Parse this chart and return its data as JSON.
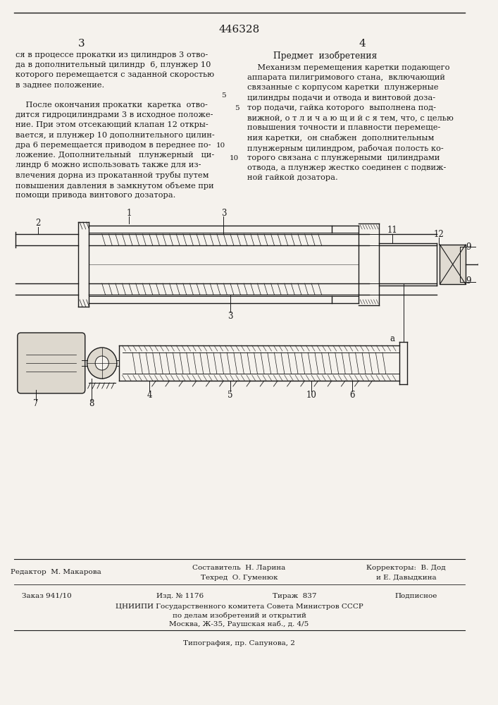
{
  "patent_number": "446328",
  "page_left": "3",
  "page_right": "4",
  "background_color": "#f5f2ed",
  "text_color": "#1a1a1a",
  "left_column_text": [
    "ся в процессе прокатки из цилиндров 3 отво-",
    "да в дополнительный цилиндр  6, плунжер 10",
    "которого перемещается с заданной скоростью",
    "в заднее положение.",
    "",
    "    После окончания прокатки  каретка  отво-",
    "дится гидроцилиндрами 3 в исходное положе-",
    "ние. При этом отсекающий клапан 12 откры-",
    "вается, и плунжер 10 дополнительного цилин-",
    "дра 6 перемещается приводом в переднее по-",
    "ложение. Дополнительный   плунжерный   ци-",
    "линдр 6 можно использовать также для из-",
    "влечения дорна из прокатанной трубы путем",
    "повышения давления в замкнутом объеме при",
    "помощи привода винтового дозатора."
  ],
  "right_title": "Предмет  изобретения",
  "right_column_text": [
    "    Механизм перемещения каретки подающего",
    "аппарата пилигримового стана,  включающий",
    "связанные с корпусом каретки  плунжерные",
    "цилиндры подачи и отвода и винтовой доза-",
    "тор подачи, гайка которого  выполнена под-",
    "вижной, о т л и ч а ю щ и й с я тем, что, с целью",
    "повышения точности и плавности перемеще-",
    "ния каретки,  он снабжен  дополнительным",
    "плунжерным цилиндром, рабочая полость ко-",
    "торого связана с плунжерными  цилиндрами",
    "отвода, а плунжер жестко соединен с подвиж-",
    "ной гайкой дозатора."
  ],
  "footer_editor": "Редактор  М. Макарова",
  "footer_techred": "Техред  О. Гуменюк",
  "footer_composer": "Составитель  Н. Ларина",
  "footer_correctors": "Корректоры:  В. Дод",
  "footer_correctors2": "и Е. Давыдкина",
  "footer_order": "Заказ 941/10",
  "footer_pub": "Изд. № 1176",
  "footer_tirazh": "Тираж  837",
  "footer_podpisnoe": "Подписное",
  "footer_org": "ЦНИИПИ Государственного комитета Совета Министров СССР",
  "footer_org2": "по делам изобретений и открытий",
  "footer_org3": "Москва, Ж-35, Раушская наб., д. 4/5",
  "footer_tipografia": "Типография, пр. Сапунова, 2"
}
